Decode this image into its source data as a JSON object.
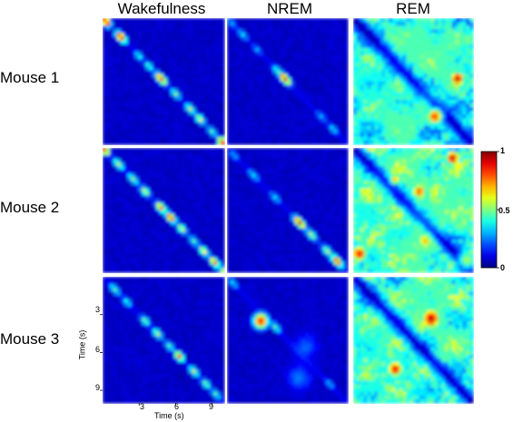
{
  "chart_data": {
    "type": "heatmap",
    "columns": [
      "Wakefulness",
      "NREM",
      "REM"
    ],
    "rows": [
      "Mouse 1",
      "Mouse 2",
      "Mouse 3"
    ],
    "xlabel": "Time (s)",
    "ylabel": "Time (s)",
    "ticks": [
      3,
      6,
      9
    ],
    "axis_range": [
      0,
      10
    ],
    "colorbar": {
      "range": [
        0,
        1
      ],
      "ticks": [
        "0",
        "0.5",
        "1"
      ],
      "colormap": "jet"
    },
    "panels": [
      {
        "row": "Mouse 1",
        "column": "Wakefulness",
        "background": 0.05,
        "diagonal": [
          [
            0.3,
            0.25,
            1.0
          ],
          [
            1.5,
            0.3,
            0.95
          ],
          [
            3.0,
            0.3,
            0.4
          ],
          [
            3.8,
            0.3,
            0.45
          ],
          [
            4.8,
            0.35,
            0.85
          ],
          [
            6.0,
            0.3,
            0.5
          ],
          [
            7.2,
            0.3,
            0.55
          ],
          [
            8.0,
            0.3,
            0.6
          ],
          [
            9.0,
            0.3,
            0.45
          ],
          [
            9.8,
            0.25,
            0.85
          ]
        ],
        "offdiag": []
      },
      {
        "row": "Mouse 1",
        "column": "NREM",
        "background": 0.05,
        "diagonal": [
          [
            0.4,
            0.35,
            0.3
          ],
          [
            1.3,
            0.35,
            0.35
          ],
          [
            2.5,
            0.3,
            0.3
          ],
          [
            4.2,
            0.35,
            0.45
          ],
          [
            4.8,
            0.35,
            0.9
          ],
          [
            7.8,
            0.35,
            0.3
          ],
          [
            8.8,
            0.35,
            0.35
          ]
        ],
        "offdiag": []
      },
      {
        "row": "Mouse 1",
        "column": "REM",
        "background": 0.35,
        "diagonal": [],
        "offdiag": [
          [
            1.0,
            4.5,
            1.3,
            0.25
          ],
          [
            5.0,
            2.0,
            1.3,
            0.3
          ],
          [
            2.5,
            7.5,
            1.3,
            0.25
          ],
          [
            6.5,
            6.0,
            0.9,
            0.25
          ],
          [
            8.5,
            3.5,
            1.3,
            0.3
          ],
          [
            4.5,
            8.5,
            1.1,
            0.3
          ],
          [
            8.7,
            4.8,
            0.45,
            0.95
          ],
          [
            6.8,
            7.8,
            0.5,
            0.85
          ],
          [
            3.5,
            8.0,
            0.7,
            0.2
          ],
          [
            6.0,
            2.5,
            1.0,
            0.3
          ]
        ]
      },
      {
        "row": "Mouse 2",
        "column": "Wakefulness",
        "background": 0.05,
        "diagonal": [
          [
            0.2,
            0.25,
            0.9
          ],
          [
            1.3,
            0.35,
            0.55
          ],
          [
            2.5,
            0.35,
            0.5
          ],
          [
            3.5,
            0.3,
            0.6
          ],
          [
            4.8,
            0.3,
            0.8
          ],
          [
            5.6,
            0.3,
            0.85
          ],
          [
            6.5,
            0.3,
            0.6
          ],
          [
            7.5,
            0.3,
            0.45
          ],
          [
            8.3,
            0.3,
            0.65
          ],
          [
            9.2,
            0.3,
            0.8
          ],
          [
            9.9,
            0.25,
            0.55
          ]
        ],
        "offdiag": []
      },
      {
        "row": "Mouse 2",
        "column": "NREM",
        "background": 0.05,
        "diagonal": [
          [
            0.6,
            0.35,
            0.3
          ],
          [
            2.2,
            0.4,
            0.35
          ],
          [
            4.0,
            0.35,
            0.35
          ],
          [
            6.0,
            0.35,
            0.9
          ],
          [
            7.0,
            0.35,
            0.55
          ],
          [
            8.3,
            0.35,
            0.55
          ],
          [
            9.1,
            0.35,
            0.85
          ]
        ],
        "offdiag": []
      },
      {
        "row": "Mouse 2",
        "column": "REM",
        "background": 0.42,
        "diagonal": [],
        "offdiag": [
          [
            1.0,
            4.0,
            1.3,
            0.25
          ],
          [
            4.5,
            1.5,
            1.3,
            0.3
          ],
          [
            6.0,
            5.5,
            1.2,
            0.25
          ],
          [
            8.5,
            4.0,
            1.2,
            0.3
          ],
          [
            2.5,
            8.0,
            1.3,
            0.25
          ],
          [
            5.5,
            8.5,
            1.0,
            0.3
          ],
          [
            8.3,
            0.8,
            0.45,
            0.95
          ],
          [
            0.5,
            8.5,
            0.5,
            0.9
          ],
          [
            5.5,
            3.5,
            0.5,
            0.8
          ],
          [
            3.5,
            2.5,
            0.4,
            0.7
          ],
          [
            6.0,
            7.5,
            0.5,
            0.7
          ],
          [
            9.5,
            9.0,
            0.6,
            0.55
          ]
        ]
      },
      {
        "row": "Mouse 3",
        "column": "Wakefulness",
        "background": 0.05,
        "diagonal": [
          [
            1.0,
            0.35,
            0.45
          ],
          [
            2.0,
            0.3,
            0.4
          ],
          [
            3.5,
            0.3,
            0.5
          ],
          [
            4.5,
            0.3,
            0.55
          ],
          [
            5.5,
            0.3,
            0.45
          ],
          [
            6.3,
            0.25,
            0.85
          ],
          [
            7.5,
            0.3,
            0.55
          ],
          [
            8.5,
            0.3,
            0.5
          ],
          [
            9.3,
            0.3,
            0.45
          ]
        ],
        "offdiag": []
      },
      {
        "row": "Mouse 3",
        "column": "NREM",
        "background": 0.05,
        "diagonal": [
          [
            0.5,
            0.35,
            0.35
          ],
          [
            4.0,
            0.35,
            0.45
          ],
          [
            8.5,
            0.35,
            0.3
          ]
        ],
        "offdiag": [
          [
            2.8,
            3.5,
            0.45,
            0.9
          ],
          [
            6.5,
            5.5,
            0.6,
            0.25
          ],
          [
            6.0,
            8.0,
            0.6,
            0.3
          ]
        ]
      },
      {
        "row": "Mouse 3",
        "column": "REM",
        "background": 0.4,
        "diagonal": [],
        "offdiag": [
          [
            1.5,
            4.5,
            1.3,
            0.25
          ],
          [
            6.0,
            2.0,
            1.3,
            0.3
          ],
          [
            2.5,
            8.0,
            1.3,
            0.25
          ],
          [
            8.0,
            5.5,
            1.0,
            0.3
          ],
          [
            6.5,
            3.3,
            0.6,
            0.95
          ],
          [
            3.5,
            7.3,
            0.5,
            0.9
          ],
          [
            5.5,
            8.5,
            0.9,
            0.2
          ]
        ]
      }
    ]
  }
}
